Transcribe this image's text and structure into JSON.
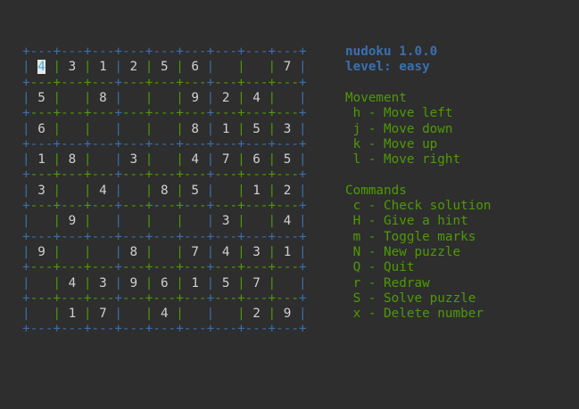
{
  "app": {
    "title": "nudoku 1.0.0",
    "level": "level: easy"
  },
  "board": {
    "cursor": {
      "row": 1,
      "col": 1
    },
    "grid": [
      [
        4,
        3,
        1,
        2,
        5,
        6,
        0,
        0,
        7
      ],
      [
        5,
        0,
        8,
        0,
        0,
        9,
        2,
        4,
        0
      ],
      [
        6,
        0,
        0,
        0,
        0,
        8,
        1,
        5,
        3
      ],
      [
        1,
        8,
        0,
        3,
        0,
        4,
        7,
        6,
        5
      ],
      [
        3,
        0,
        4,
        0,
        8,
        5,
        0,
        1,
        2
      ],
      [
        0,
        9,
        0,
        0,
        0,
        0,
        3,
        0,
        4
      ],
      [
        9,
        0,
        0,
        8,
        0,
        7,
        4,
        3,
        1
      ],
      [
        0,
        4,
        3,
        9,
        6,
        1,
        5,
        7,
        0
      ],
      [
        0,
        1,
        7,
        0,
        4,
        0,
        0,
        2,
        9
      ]
    ]
  },
  "help": {
    "movement_heading": "Movement",
    "movement": [
      "h - Move left",
      "j - Move down",
      "k - Move up",
      "l - Move right"
    ],
    "commands_heading": "Commands",
    "commands": [
      "c - Check solution",
      "H - Give a hint",
      "m - Toggle marks",
      "N - New puzzle",
      "Q - Quit",
      "r - Redraw",
      "S - Solve puzzle",
      "x - Delete number"
    ]
  },
  "colors": {
    "background": "#2e2e2e",
    "box_border": "#3a6fb0",
    "cell_border": "#4e9a06",
    "digit": "#d0d0d0",
    "cursor_digit": "#3fa9d8"
  }
}
